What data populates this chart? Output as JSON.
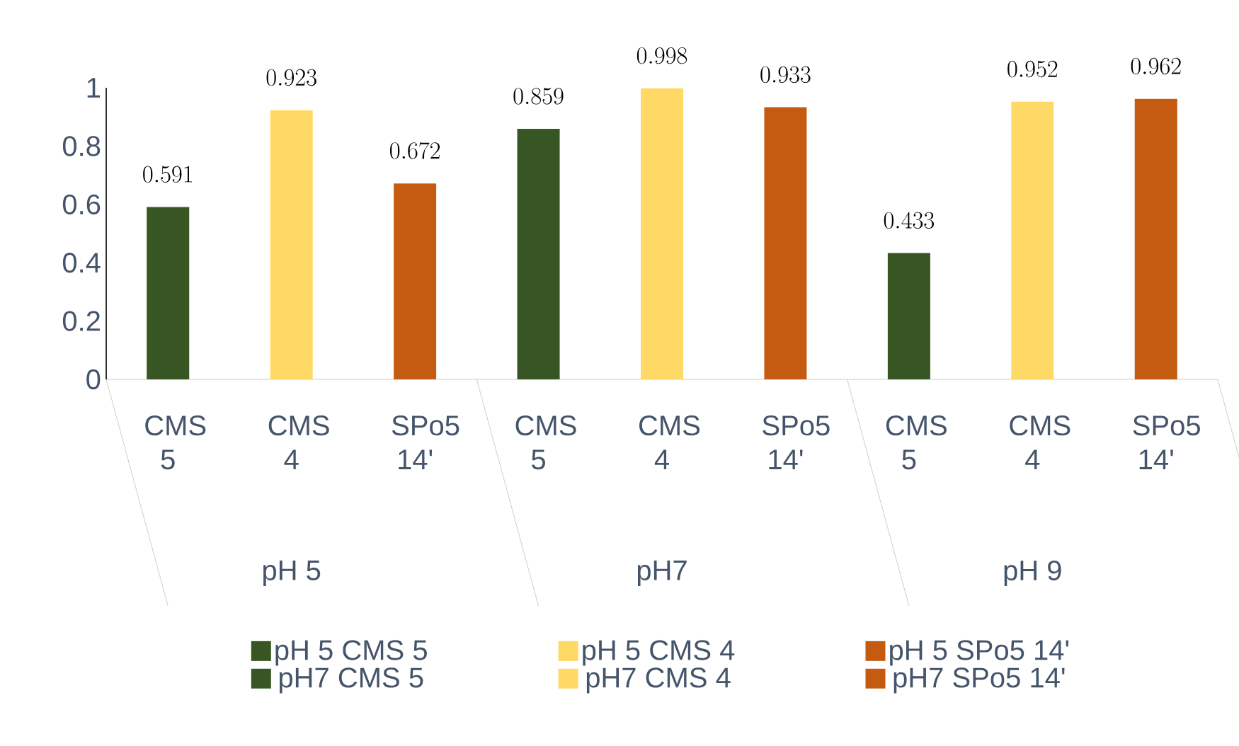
{
  "chart_data": {
    "type": "bar",
    "categories": [
      "CMS 5",
      "CMS 4",
      "SPo5 14'",
      "CMS 5",
      "CMS 4",
      "SPo5 14'",
      "CMS 5",
      "CMS 4",
      "SPo5 14'"
    ],
    "series": [
      {
        "name": "pH 5 CMS 5",
        "color": "#375623",
        "values": [
          0.591,
          null,
          null,
          null,
          null,
          null,
          null,
          null,
          null
        ]
      },
      {
        "name": "pH 5 CMS 4",
        "color": "#ffd966",
        "values": [
          null,
          0.923,
          null,
          null,
          null,
          null,
          null,
          null,
          null
        ]
      },
      {
        "name": "pH 5 SPo5 14'",
        "color": "#c55a11",
        "values": [
          null,
          null,
          0.672,
          null,
          null,
          null,
          null,
          null,
          null
        ]
      },
      {
        "name": "pH7 CMS 5",
        "color": "#375623",
        "values": [
          null,
          null,
          null,
          0.859,
          null,
          null,
          null,
          null,
          null
        ]
      },
      {
        "name": "pH7 CMS 4",
        "color": "#ffd966",
        "values": [
          null,
          null,
          null,
          null,
          0.998,
          null,
          null,
          null,
          null
        ]
      },
      {
        "name": "pH7 SPo5 14'",
        "color": "#c55a11",
        "values": [
          null,
          null,
          null,
          null,
          null,
          0.933,
          null,
          null,
          null
        ]
      },
      {
        "color": "#375623",
        "values": [
          null,
          null,
          null,
          null,
          null,
          null,
          0.433,
          null,
          null
        ]
      },
      {
        "color": "#ffd966",
        "values": [
          null,
          null,
          null,
          null,
          null,
          null,
          null,
          0.952,
          null
        ]
      },
      {
        "color": "#c55a11",
        "values": [
          null,
          null,
          null,
          null,
          null,
          null,
          null,
          null,
          0.962
        ]
      }
    ],
    "annotations": [
      "pH 5",
      "pH7",
      "pH 9"
    ],
    "ylim": [
      0,
      1
    ],
    "yticks": [
      0,
      0.2,
      0.4,
      0.6,
      0.8,
      1
    ],
    "data_labels": true,
    "legend": "bottom"
  }
}
